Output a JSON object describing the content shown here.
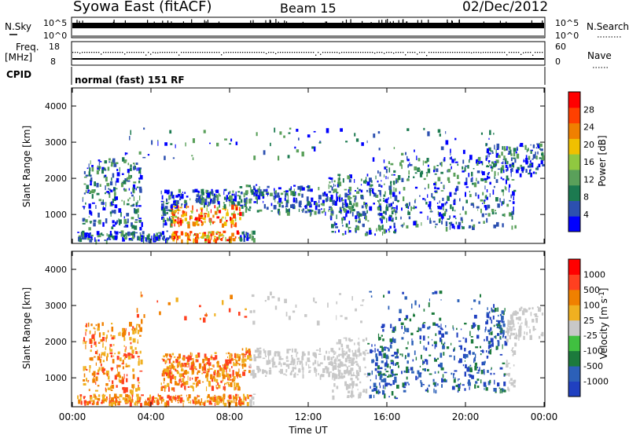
{
  "header": {
    "title_left": "Syowa East (fitACF)",
    "title_center": "Beam 15",
    "title_right": "02/Dec/2012"
  },
  "top_panels": {
    "nsky_label": "N.Sky",
    "nsky_ticks": [
      "10^5",
      "10^0"
    ],
    "nsearch_label": "N.Search",
    "nsearch_ticks": [
      "10^5",
      "10^0"
    ],
    "freq_label_1": "Freq.",
    "freq_label_2": "[MHz]",
    "freq_ticks": [
      "18",
      "8"
    ],
    "nave_label": "Nave",
    "nave_ticks": [
      "60",
      "0"
    ],
    "cpid_label": "CPID",
    "cpid_text": "normal (fast) 151 RF"
  },
  "chart_data": [
    {
      "type": "heatmap",
      "name": "power",
      "ylabel": "Slant Range [km]",
      "yticks": [
        "1000",
        "2000",
        "3000",
        "4000"
      ],
      "ylim": [
        200,
        4500
      ],
      "xlim_hours": [
        0,
        24
      ],
      "colorbar_label": "Power [dB]",
      "colorbar_ticks": [
        "28",
        "24",
        "20",
        "16",
        "12",
        "8",
        "4"
      ],
      "colors": [
        "#0000ff",
        "#2c50b0",
        "#1c7a50",
        "#5aa05a",
        "#90c840",
        "#f0c000",
        "#f08000",
        "#ff4000",
        "#ff0000"
      ]
    },
    {
      "type": "heatmap",
      "name": "velocity",
      "ylabel": "Slant Range [km]",
      "yticks": [
        "1000",
        "2000",
        "3000",
        "4000"
      ],
      "ylim": [
        200,
        4500
      ],
      "xlim_hours": [
        0,
        24
      ],
      "colorbar_label": "Velocity [m s",
      "colorbar_label_sup": "-1",
      "colorbar_label_tail": "]",
      "colorbar_ticks": [
        "1000",
        "500",
        "100",
        "25",
        "-25",
        "-100",
        "-500",
        "-1000"
      ],
      "colors": [
        "#2040c0",
        "#2c60b8",
        "#1c7a3c",
        "#40c040",
        "#c8c8c8",
        "#f0b020",
        "#f08000",
        "#ff4020",
        "#ff0000"
      ]
    }
  ],
  "xaxis": {
    "label": "Time UT",
    "ticks": [
      "00:00",
      "04:00",
      "08:00",
      "12:00",
      "16:00",
      "20:00",
      "00:00"
    ]
  }
}
